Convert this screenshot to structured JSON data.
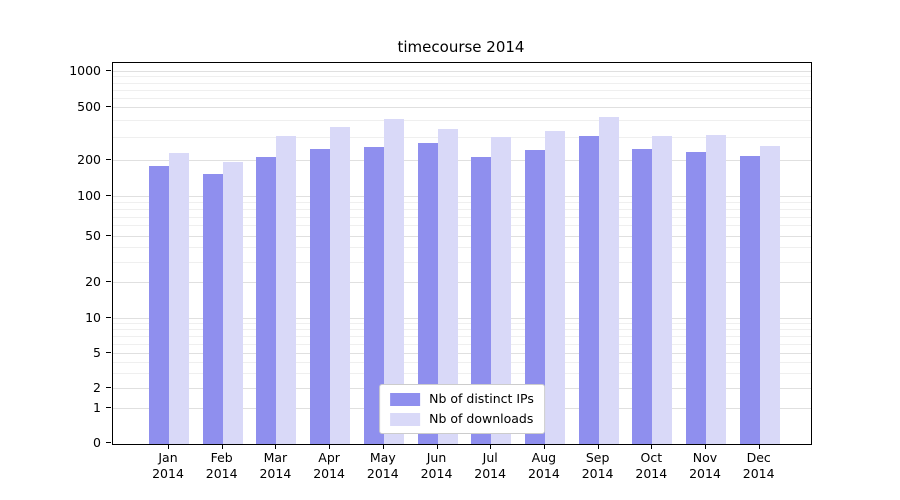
{
  "title": "timecourse 2014",
  "legend": {
    "items": [
      {
        "label": "Nb of distinct IPs",
        "color": "#8f8fee"
      },
      {
        "label": "Nb of downloads",
        "color": "#d9d9f8"
      }
    ]
  },
  "axes": {
    "y_ticks": [
      0,
      1,
      2,
      5,
      10,
      20,
      50,
      100,
      200,
      500,
      1000
    ],
    "x_tick_top": [
      "Jan",
      "Feb",
      "Mar",
      "Apr",
      "May",
      "Jun",
      "Jul",
      "Aug",
      "Sep",
      "Oct",
      "Nov",
      "Dec"
    ],
    "x_tick_bottom": "2014"
  },
  "chart_data": {
    "type": "bar",
    "title": "timecourse 2014",
    "yscale": "symlog",
    "grid": true,
    "legend_position": "lower center",
    "ylim": [
      0,
      1200
    ],
    "y_ticks": [
      0,
      1,
      2,
      5,
      10,
      20,
      50,
      100,
      200,
      500,
      1000
    ],
    "categories": [
      "Jan 2014",
      "Feb 2014",
      "Mar 2014",
      "Apr 2014",
      "May 2014",
      "Jun 2014",
      "Jul 2014",
      "Aug 2014",
      "Sep 2014",
      "Oct 2014",
      "Nov 2014",
      "Dec 2014"
    ],
    "series": [
      {
        "name": "Nb of distinct IPs",
        "color": "#8f8fee",
        "values": [
          180,
          155,
          215,
          245,
          255,
          275,
          215,
          240,
          310,
          245,
          235,
          220
        ]
      },
      {
        "name": "Nb of downloads",
        "color": "#d9d9f8",
        "values": [
          230,
          195,
          310,
          360,
          415,
          345,
          305,
          335,
          430,
          310,
          315,
          260
        ]
      }
    ]
  }
}
